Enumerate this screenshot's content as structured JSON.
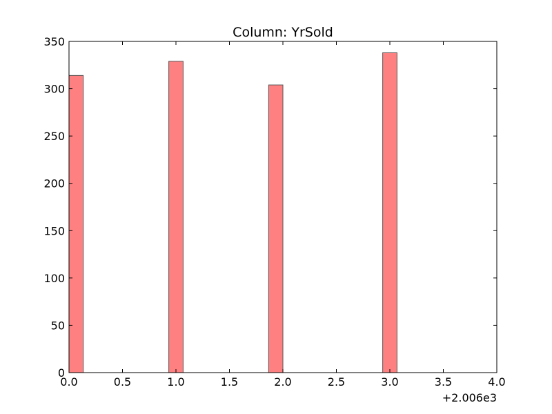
{
  "chart_data": {
    "type": "bar",
    "title": "Column: YrSold",
    "xlabel": "",
    "ylabel": "",
    "x_offset_label": "+2.006e3",
    "xlim": [
      0,
      4
    ],
    "ylim": [
      0,
      350
    ],
    "x_ticks": [
      "0.0",
      "0.5",
      "1.0",
      "1.5",
      "2.0",
      "2.5",
      "3.0",
      "3.5",
      "4.0"
    ],
    "x_tick_values": [
      0,
      0.5,
      1,
      1.5,
      2,
      2.5,
      3,
      3.5,
      4
    ],
    "y_ticks": [
      "0",
      "50",
      "100",
      "150",
      "200",
      "250",
      "300",
      "350"
    ],
    "y_tick_values": [
      0,
      50,
      100,
      150,
      200,
      250,
      300,
      350
    ],
    "bars": [
      {
        "x_start": 0.0,
        "x_end": 0.133,
        "value": 314
      },
      {
        "x_start": 0.933,
        "x_end": 1.067,
        "value": 329
      },
      {
        "x_start": 1.867,
        "x_end": 2.0,
        "value": 304
      },
      {
        "x_start": 2.933,
        "x_end": 3.067,
        "value": 338
      }
    ],
    "bar_color": "#ff8080",
    "bar_edge_color": "#555555",
    "grid": false
  }
}
